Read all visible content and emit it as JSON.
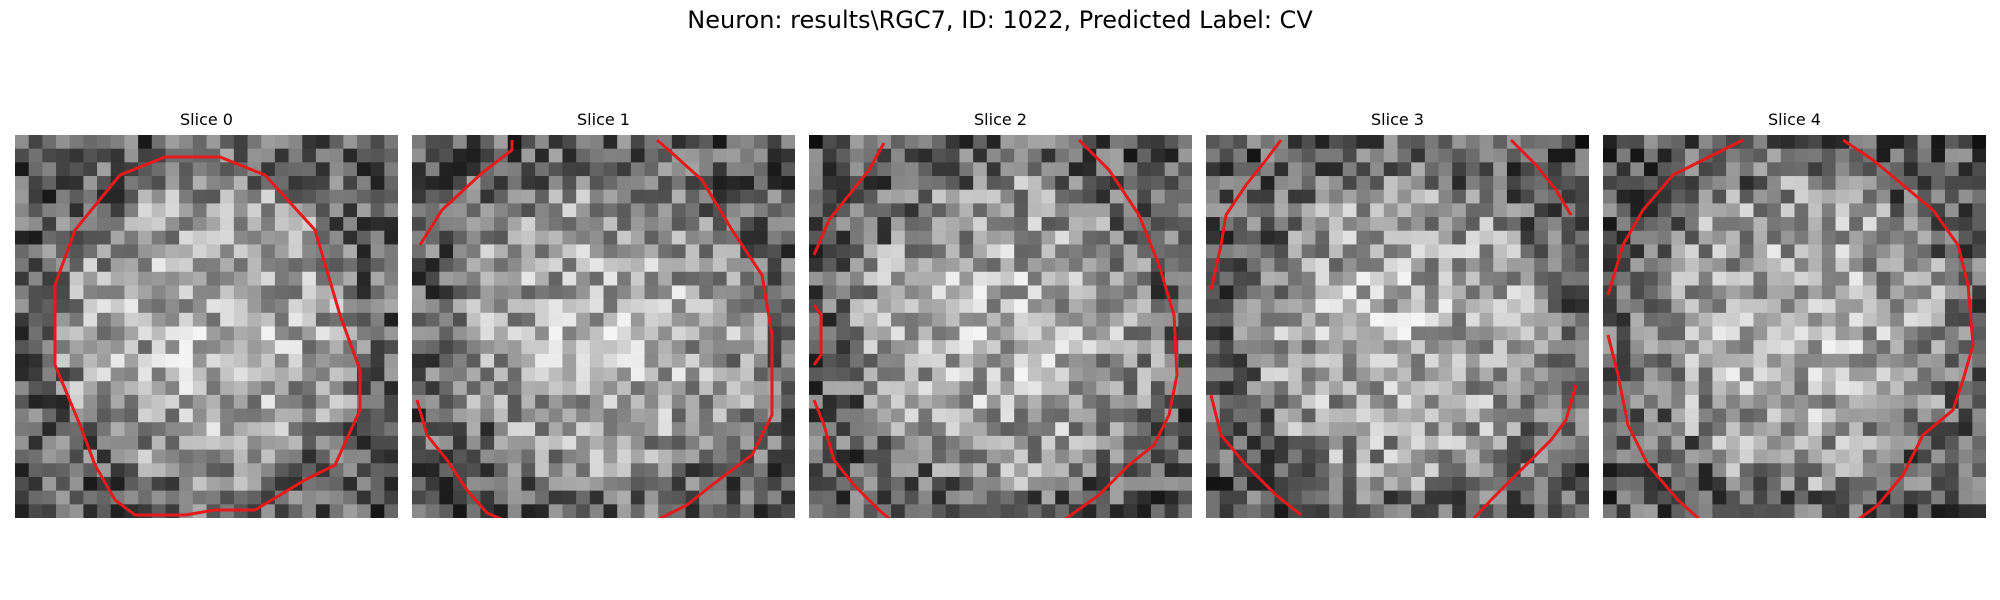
{
  "figure": {
    "title": "Neuron: results\\RGC7, ID: 1022, Predicted Label: CV",
    "contour_color": "#e41a1c",
    "colormap": "gray"
  },
  "panels": [
    {
      "title": "Slice 0"
    },
    {
      "title": "Slice 1"
    },
    {
      "title": "Slice 2"
    },
    {
      "title": "Slice 3"
    },
    {
      "title": "Slice 4"
    }
  ]
}
